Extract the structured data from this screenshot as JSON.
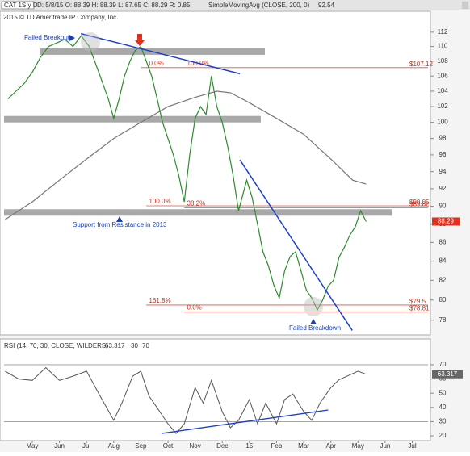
{
  "chart_data": {
    "type": "line",
    "log_scale": true,
    "header": {
      "symbol": "CAT 1S y D",
      "quote": "D: 5/8/15  O: 88.39  H: 88.39  L: 87.65  C: 88.29  R: 0.85",
      "study": "SimpleMovingAvg (CLOSE, 200, 0)",
      "study_value": "92.54"
    },
    "subtitle": "2015 © TD Ameritrade IP Company, Inc.",
    "xlim": [
      -1.04,
      14.58
    ],
    "xticks": [
      {
        "value": 0,
        "label": "May"
      },
      {
        "value": 1,
        "label": "Jun"
      },
      {
        "value": 2,
        "label": "Jul"
      },
      {
        "value": 3,
        "label": "Aug"
      },
      {
        "value": 4,
        "label": "Sep"
      },
      {
        "value": 5,
        "label": "Oct"
      },
      {
        "value": 6,
        "label": "Nov"
      },
      {
        "value": 7,
        "label": "Dec"
      },
      {
        "value": 8,
        "label": "15"
      },
      {
        "value": 9,
        "label": "Feb"
      },
      {
        "value": 10,
        "label": "Mar"
      },
      {
        "value": 11,
        "label": "Apr"
      },
      {
        "value": 12,
        "label": "May"
      },
      {
        "value": 13,
        "label": "Jun"
      },
      {
        "value": 14,
        "label": "Jul"
      }
    ],
    "ylim": [
      76.8,
      113.7
    ],
    "yticks": [
      78,
      80,
      82,
      84,
      86,
      88,
      90,
      92,
      94,
      96,
      98,
      100,
      102,
      104,
      106,
      108,
      110,
      112
    ],
    "series": [
      {
        "color": "#2e8b2e",
        "x": [
          -0.9,
          -0.6,
          -0.3,
          0,
          0.3,
          0.6,
          0.9,
          1.2,
          1.5,
          1.8,
          2.1,
          2.5,
          2.8,
          3.0,
          3.2,
          3.4,
          3.6,
          3.8,
          4.0,
          4.2,
          4.4,
          4.6,
          4.8,
          5.0,
          5.2,
          5.4,
          5.6,
          5.8,
          6.0,
          6.2,
          6.4,
          6.6,
          6.8,
          7.0,
          7.2,
          7.4,
          7.6,
          7.9,
          8.1,
          8.3,
          8.5,
          8.7,
          8.9,
          9.1,
          9.3,
          9.5,
          9.7,
          9.9,
          10.1,
          10.3,
          10.5,
          10.7,
          10.9,
          11.1,
          11.3,
          11.5,
          11.7,
          11.9,
          12.1,
          12.3
        ],
        "values": [
          103,
          104,
          105,
          106.5,
          108.5,
          110,
          110.5,
          111,
          110,
          111.5,
          110,
          106,
          103,
          100.5,
          103,
          106,
          108,
          109.5,
          110,
          108,
          106,
          103,
          100,
          98,
          96,
          93.5,
          90.5,
          96,
          100.5,
          102,
          101,
          106,
          102,
          100,
          97,
          93.5,
          89.5,
          93,
          91,
          88,
          85,
          83.5,
          81.5,
          80.2,
          83,
          84.5,
          85,
          83,
          81,
          80.2,
          79,
          80,
          81.4,
          82,
          84.4,
          85.5,
          86.8,
          87.7,
          89.5,
          88.29
        ]
      },
      {
        "color": "#777777",
        "x": [
          -1,
          0,
          1,
          2,
          3,
          4,
          5,
          6,
          6.8,
          7.3,
          8,
          9,
          10,
          11,
          11.8,
          12.3
        ],
        "values": [
          88.5,
          90.5,
          93,
          95.5,
          98,
          100,
          102,
          103.2,
          104,
          103.8,
          102.5,
          100.5,
          98.5,
          95.5,
          93,
          92.54
        ]
      }
    ],
    "bands": [
      {
        "value": 109.3,
        "x": [
          0.3,
          8.57
        ]
      },
      {
        "value": 100.4,
        "x": [
          -1.04,
          8.42
        ]
      },
      {
        "value": 89.3,
        "x": [
          -1.04,
          13.24
        ]
      }
    ],
    "levels": [
      {
        "value": 107.12,
        "label": "$107.12",
        "x": 4.0
      },
      {
        "value": 90.05,
        "label": "$90.05",
        "x": 4.2
      },
      {
        "value": 89.82,
        "label": "$89.82",
        "x": 5.6
      },
      {
        "value": 79.5,
        "label": "$79.5",
        "x": 4.2
      },
      {
        "value": 78.81,
        "label": "$78.81",
        "x": 5.6
      }
    ],
    "fib_labels": [
      {
        "text": "0.0%",
        "x": 4.3,
        "y": 107.12
      },
      {
        "text": "100.0%",
        "x": 5.7,
        "y": 107.12
      },
      {
        "text": "100.0%",
        "x": 4.3,
        "y": 90.05
      },
      {
        "text": "38.2%",
        "x": 5.7,
        "y": 89.82
      },
      {
        "text": "161.8%",
        "x": 4.3,
        "y": 79.5
      },
      {
        "text": "0.0%",
        "x": 5.7,
        "y": 78.81
      }
    ],
    "trendlines": [
      {
        "x": [
          1.79,
          7.65
        ],
        "y": [
          111.8,
          106.3
        ]
      },
      {
        "x": [
          7.65,
          11.79
        ],
        "y": [
          95.4,
          77.0
        ]
      }
    ],
    "last_price": 88.29,
    "annotations": [
      "Failed Breakout",
      "Support from Resistance in 2013",
      "Failed Breakdown"
    ],
    "rsi": {
      "title": "RSI (14, 70, 30, CLOSE, WILDERS)",
      "value": 63.317,
      "levels": [
        30,
        70
      ],
      "ylim": [
        17.2,
        85.3
      ],
      "yticks": [
        20,
        30,
        40,
        50,
        60,
        70
      ],
      "color": "#555555",
      "x": [
        -1,
        -0.5,
        0,
        0.5,
        1,
        1.5,
        2,
        2.5,
        3,
        3.3,
        3.7,
        4,
        4.3,
        4.7,
        5,
        5.3,
        5.6,
        6,
        6.3,
        6.6,
        7,
        7.3,
        7.6,
        8,
        8.3,
        8.6,
        9,
        9.3,
        9.6,
        10,
        10.3,
        10.6,
        11,
        11.3,
        11.6,
        12,
        12.3
      ],
      "values": [
        65.5,
        60,
        59,
        68,
        59,
        62,
        65.5,
        48,
        31,
        43,
        62,
        65.5,
        48,
        37,
        28.5,
        21.7,
        28.5,
        54,
        43,
        59,
        37,
        25.7,
        31,
        45.6,
        28.5,
        43,
        28.5,
        45.6,
        49.5,
        37,
        31,
        43,
        54,
        59.5,
        62,
        65.5,
        63.317
      ],
      "divergence": {
        "x": [
          4.76,
          10.9
        ],
        "y": [
          21.7,
          38.2
        ]
      }
    }
  }
}
